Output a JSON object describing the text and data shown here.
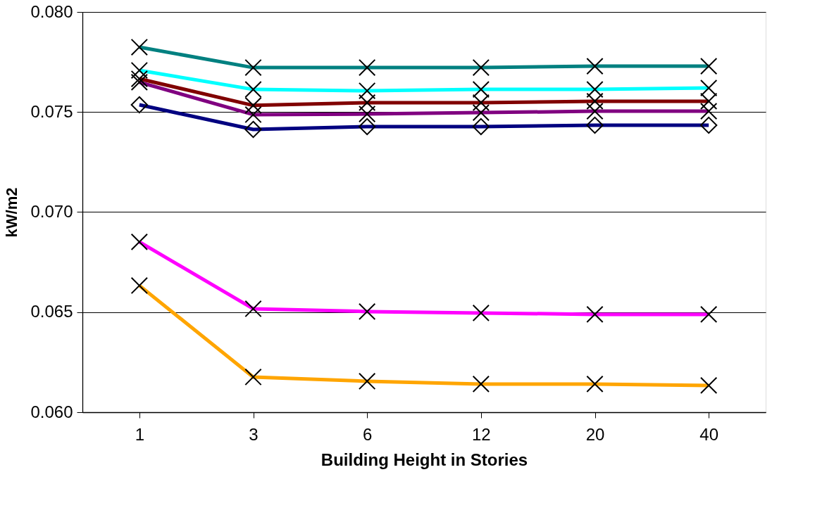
{
  "chart_data": {
    "type": "line",
    "xlabel": "Building Height in Stories",
    "ylabel": "kW/m2",
    "categories": [
      "1",
      "3",
      "6",
      "12",
      "20",
      "40"
    ],
    "series": [
      {
        "color": "#008080",
        "marker": "cross",
        "values": [
          0.07824,
          0.07722,
          0.07722,
          0.07722,
          0.07729,
          0.07729
        ]
      },
      {
        "color": "#00ffff",
        "marker": "cross",
        "values": [
          0.07708,
          0.07613,
          0.07606,
          0.07613,
          0.07613,
          0.0762
        ]
      },
      {
        "color": "#800000",
        "marker": "cross",
        "values": [
          0.07666,
          0.07533,
          0.07547,
          0.07547,
          0.07554,
          0.07554
        ]
      },
      {
        "color": "#800080",
        "marker": "cross",
        "values": [
          0.07649,
          0.07487,
          0.0749,
          0.07497,
          0.07504,
          0.07504
        ]
      },
      {
        "color": "#000080",
        "marker": "diamond",
        "values": [
          0.07536,
          0.07413,
          0.07427,
          0.07427,
          0.07434,
          0.07434
        ]
      },
      {
        "color": "#ff00ff",
        "marker": "cross",
        "values": [
          0.06851,
          0.06517,
          0.06503,
          0.06496,
          0.06489,
          0.06489
        ]
      },
      {
        "color": "#ffa500",
        "marker": "cross",
        "values": [
          0.06633,
          0.06176,
          0.06155,
          0.06141,
          0.06141,
          0.06134
        ]
      }
    ],
    "ylim": [
      0.06,
      0.08
    ],
    "yticks": [
      {
        "value": 0.06,
        "label": "0.060"
      },
      {
        "value": 0.065,
        "label": "0.065"
      },
      {
        "value": 0.07,
        "label": "0.070"
      },
      {
        "value": 0.075,
        "label": "0.075"
      },
      {
        "value": 0.08,
        "label": "0.080"
      }
    ],
    "grid": "y",
    "legend": false,
    "line_style": "solid"
  }
}
